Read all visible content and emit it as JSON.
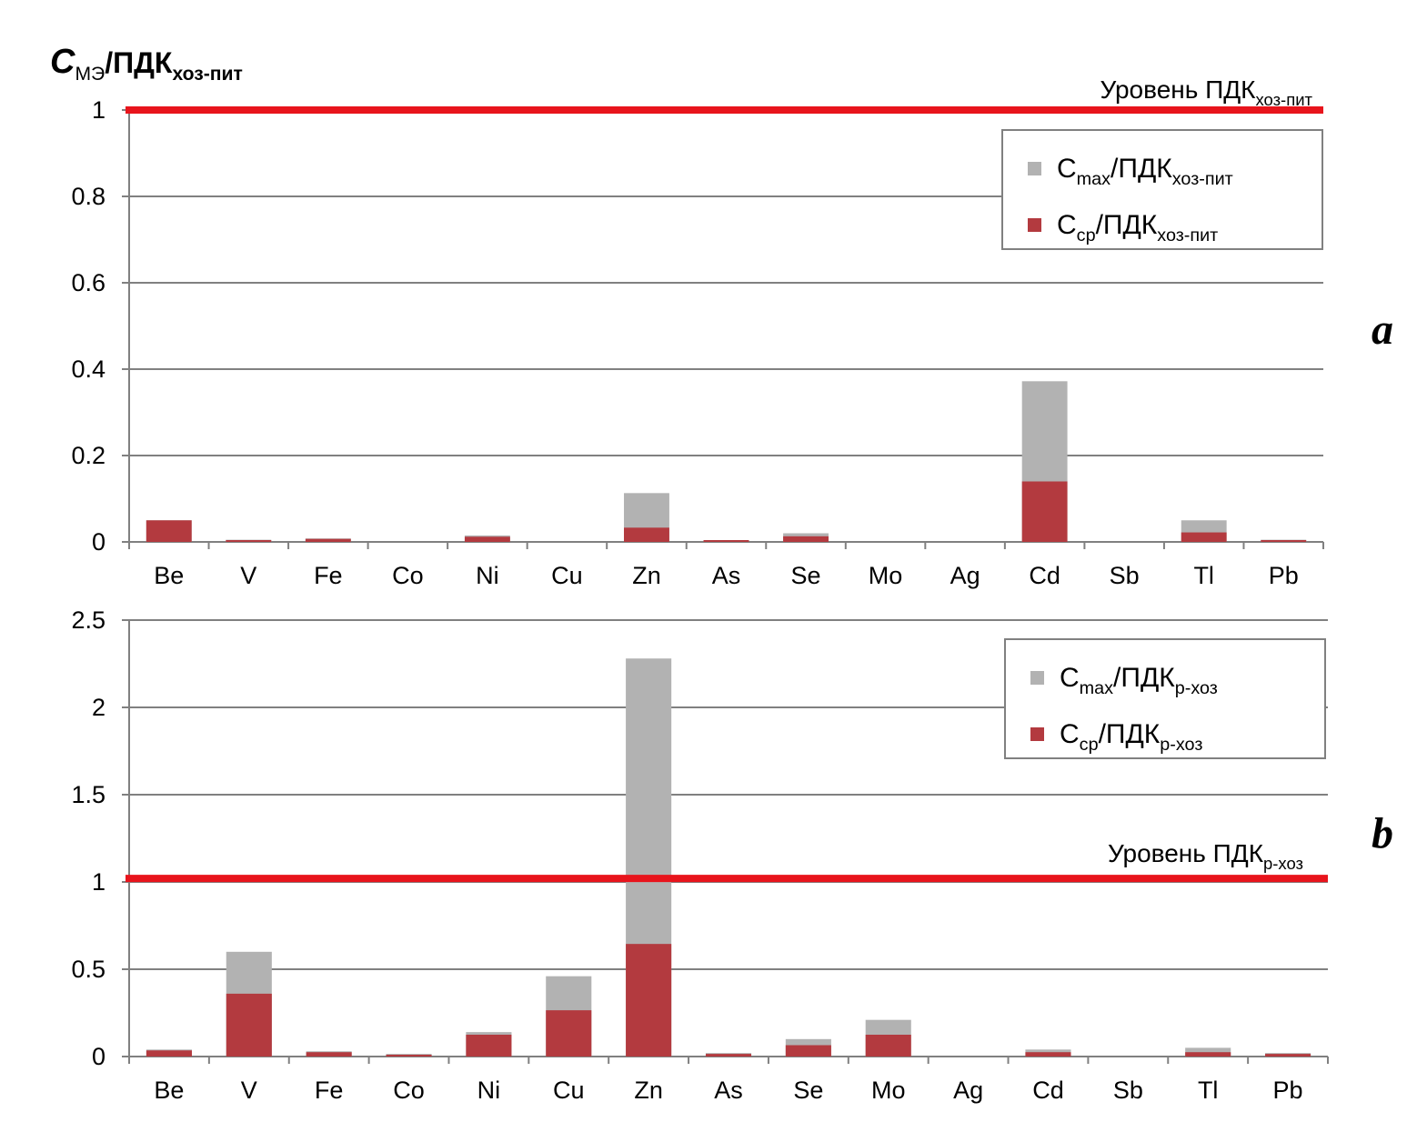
{
  "y_title": {
    "main": "C",
    "sub1": "МЭ",
    "mid": "/ПДК",
    "sub2": "хоз-пит"
  },
  "colors": {
    "max": "#b2b2b2",
    "avg": "#b33a3f",
    "ref_line": "#e8141c",
    "grid": "#808080"
  },
  "chart_data": [
    {
      "type": "bar",
      "panel_label": "a",
      "categories": [
        "Be",
        "V",
        "Fe",
        "Co",
        "Ni",
        "Cu",
        "Zn",
        "As",
        "Se",
        "Mo",
        "Ag",
        "Cd",
        "Sb",
        "Tl",
        "Pb"
      ],
      "ylim": [
        0,
        1
      ],
      "yticks": [
        "0",
        "0.2",
        "0.4",
        "0.6",
        "0.8",
        "1"
      ],
      "grid": true,
      "legend_position": "top-right",
      "series": [
        {
          "key": "max",
          "name": {
            "c": "C",
            "s1": "max",
            "m": "/ПДК",
            "s2": "хоз-пит"
          },
          "values": [
            0.05,
            0.005,
            0.008,
            0.0,
            0.015,
            0.0,
            0.113,
            0.003,
            0.02,
            0.0,
            0.0,
            0.372,
            0.0,
            0.05,
            0.005
          ]
        },
        {
          "key": "avg",
          "name": {
            "c": "C",
            "s1": "ср",
            "m": "/ПДК",
            "s2": "хоз-пит"
          },
          "values": [
            0.05,
            0.004,
            0.007,
            0.0,
            0.012,
            0.0,
            0.033,
            0.002,
            0.013,
            0.0,
            0.0,
            0.14,
            0.0,
            0.022,
            0.003
          ]
        }
      ],
      "reference_line": {
        "value": 1,
        "label": {
          "text": "Уровень ПДК",
          "sub": "хоз-пит"
        }
      }
    },
    {
      "type": "bar",
      "panel_label": "b",
      "categories": [
        "Be",
        "V",
        "Fe",
        "Co",
        "Ni",
        "Cu",
        "Zn",
        "As",
        "Se",
        "Mo",
        "Ag",
        "Cd",
        "Sb",
        "Tl",
        "Pb"
      ],
      "ylim": [
        0,
        2.5
      ],
      "yticks": [
        "0",
        "0.5",
        "1",
        "1.5",
        "2",
        "2.5"
      ],
      "grid": true,
      "legend_position": "top-right",
      "series": [
        {
          "key": "max",
          "name": {
            "c": "C",
            "s1": "max",
            "m": "/ПДК",
            "s2": "р-хоз"
          },
          "values": [
            0.04,
            0.6,
            0.03,
            0.015,
            0.14,
            0.46,
            2.28,
            0.02,
            0.1,
            0.21,
            0.0,
            0.04,
            0.0,
            0.05,
            0.02
          ]
        },
        {
          "key": "avg",
          "name": {
            "c": "C",
            "s1": "ср",
            "m": "/ПДК",
            "s2": "р-хоз"
          },
          "values": [
            0.035,
            0.36,
            0.025,
            0.01,
            0.125,
            0.265,
            0.645,
            0.015,
            0.065,
            0.125,
            0.0,
            0.025,
            0.0,
            0.025,
            0.015
          ]
        }
      ],
      "reference_line": {
        "value": 1.02,
        "label": {
          "text": "Уровень ПДК",
          "sub": "р-хоз"
        }
      }
    }
  ]
}
